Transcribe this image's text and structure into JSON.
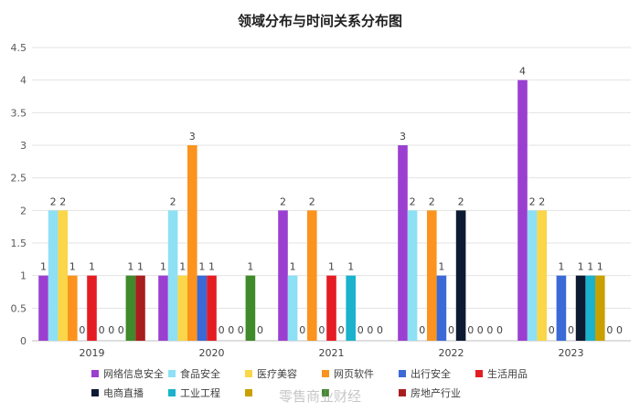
{
  "chart_data": {
    "type": "bar",
    "title": "领域分布与时间关系分布图",
    "xlabel": "",
    "ylabel": "",
    "ylim": [
      0,
      4.5
    ],
    "yticks": [
      "0",
      "0.5",
      "1",
      "1.5",
      "2",
      "2.5",
      "3",
      "3.5",
      "4",
      "4.5"
    ],
    "grid": true,
    "legend_position": "bottom",
    "categories": [
      "2019",
      "2020",
      "2021",
      "2022",
      "2023"
    ],
    "series": [
      {
        "name": "网络信息安全",
        "color": "#9b3fd1",
        "values": [
          1,
          1,
          2,
          3,
          4
        ]
      },
      {
        "name": "食品安全",
        "color": "#8ee0f5",
        "values": [
          2,
          2,
          1,
          2,
          2
        ]
      },
      {
        "name": "医疗美容",
        "color": "#fad648",
        "values": [
          2,
          1,
          0,
          0,
          2
        ]
      },
      {
        "name": "网页软件",
        "color": "#fb931e",
        "values": [
          1,
          3,
          2,
          2,
          0
        ]
      },
      {
        "name": "出行安全",
        "color": "#3b69d6",
        "values": [
          0,
          1,
          0,
          1,
          1
        ]
      },
      {
        "name": "生活用品",
        "color": "#e51c23",
        "values": [
          1,
          1,
          1,
          0,
          0
        ]
      },
      {
        "name": "电商直播",
        "color": "#0d1a33",
        "values": [
          0,
          0,
          0,
          2,
          1
        ]
      },
      {
        "name": "工业工程",
        "color": "#1ab2cc",
        "values": [
          0,
          0,
          1,
          0,
          1
        ]
      },
      {
        "name": "",
        "color": "#c8a000",
        "values": [
          0,
          0,
          0,
          0,
          1
        ]
      },
      {
        "name": "",
        "color": "#3f8a2a",
        "values": [
          1,
          1,
          0,
          0,
          0
        ]
      },
      {
        "name": "房地产行业",
        "color": "#a81e1e",
        "values": [
          1,
          0,
          0,
          0,
          0
        ]
      }
    ]
  },
  "watermark": "零售商业财经"
}
